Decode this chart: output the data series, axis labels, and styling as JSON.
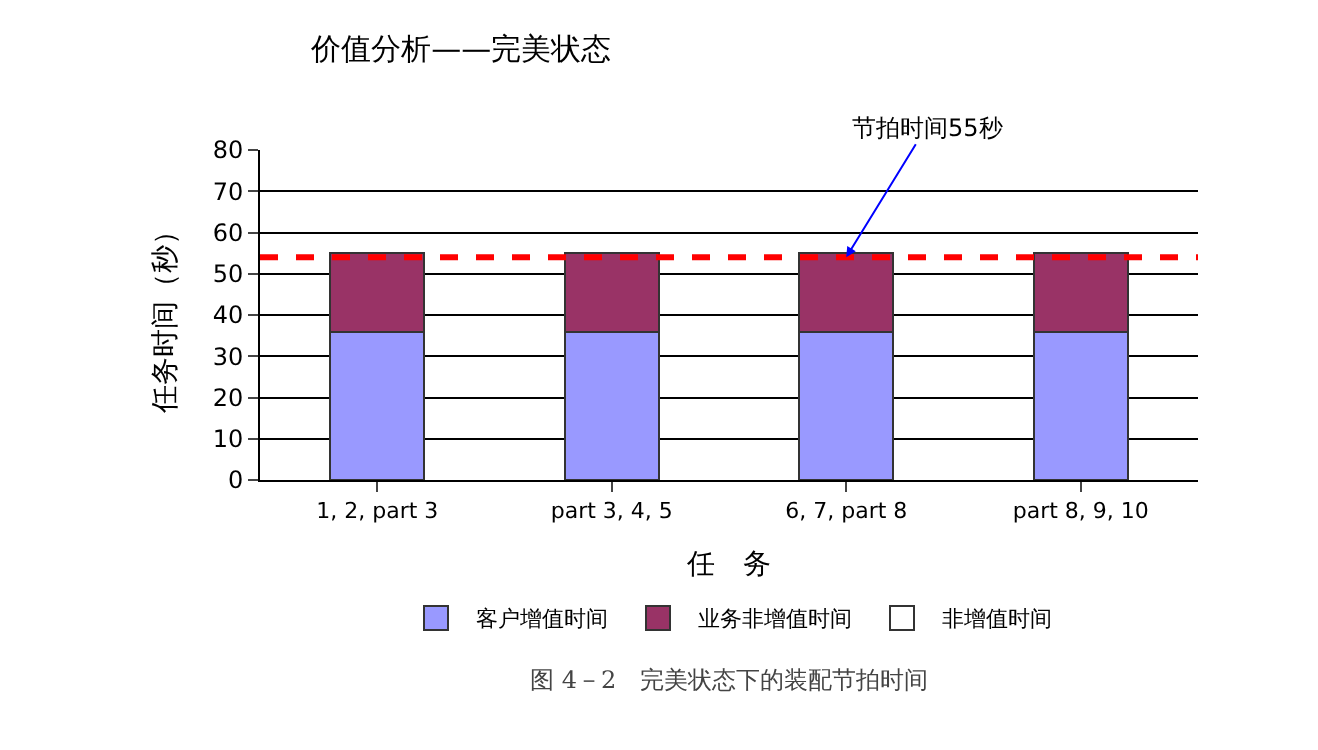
{
  "chart_data": {
    "type": "bar",
    "title": "价值分析——完美状态",
    "xlabel": "任　务",
    "ylabel": "任务时间（秒）",
    "categories": [
      "1, 2, part 3",
      "part 3, 4, 5",
      "6, 7, part 8",
      "part 8, 9, 10"
    ],
    "stacked": true,
    "series": [
      {
        "name": "客户增值时间",
        "color": "#9999ff",
        "values": [
          36,
          36,
          36,
          36
        ]
      },
      {
        "name": "业务非增值时间",
        "color": "#993366",
        "values": [
          19,
          19,
          19,
          19
        ]
      },
      {
        "name": "非增值时间",
        "color": "#ffffff",
        "values": [
          0,
          0,
          0,
          0
        ]
      }
    ],
    "ylim": [
      0,
      80
    ],
    "yticks": [
      0,
      10,
      20,
      30,
      40,
      50,
      60,
      70,
      80
    ],
    "grid": "y",
    "legend": "bottom",
    "ref_lines": [
      {
        "axis": "y",
        "value": 54,
        "color": "#ff0000",
        "line_style": "dashed"
      }
    ],
    "annotations": [
      {
        "text": "节拍时间55秒",
        "x": "6, 7, part 8",
        "y": 54
      },
      "图 4－2　完美状态下的装配节拍时间"
    ]
  }
}
